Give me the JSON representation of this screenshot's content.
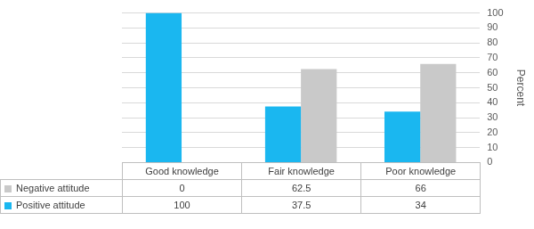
{
  "chart_data": {
    "type": "bar",
    "categories": [
      "Good knowledge",
      "Fair knowledge",
      "Poor knowledge"
    ],
    "series": [
      {
        "name": "Positive attitude",
        "color": "#1ab7f0",
        "values": [
          100,
          37.5,
          34
        ]
      },
      {
        "name": "Negative attitude",
        "color": "#c9c9c9",
        "values": [
          0,
          62.5,
          66
        ]
      }
    ],
    "ylabel": "Percent",
    "ylim": [
      0,
      100
    ],
    "yticks": [
      0,
      10,
      20,
      30,
      40,
      50,
      60,
      70,
      80,
      90,
      100
    ],
    "grid": true
  }
}
